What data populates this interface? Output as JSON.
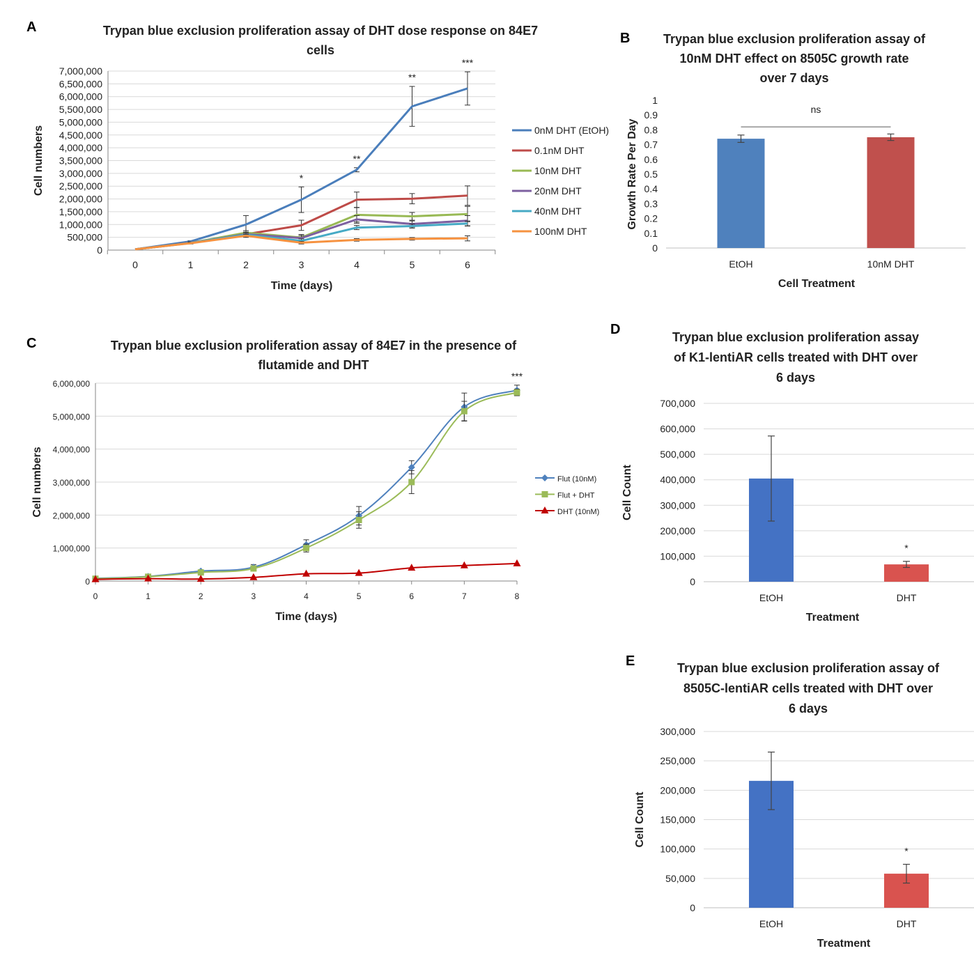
{
  "panel_letters": [
    "A",
    "B",
    "C",
    "D",
    "E"
  ],
  "chart_data": [
    {
      "id": "A",
      "type": "line",
      "title_lines": [
        "Trypan blue exclusion proliferation assay of DHT dose response on 84E7",
        "cells"
      ],
      "xlabel": "Time (days)",
      "ylabel": "Cell numbers",
      "x": [
        0,
        1,
        2,
        3,
        4,
        5,
        6
      ],
      "ylim": [
        0,
        7000000
      ],
      "ytick_step": 500000,
      "yticks": [
        "0",
        "500,000",
        "1,000,000",
        "1,500,000",
        "2,000,000",
        "2,500,000",
        "3,000,000",
        "3,500,000",
        "4,000,000",
        "4,500,000",
        "5,000,000",
        "5,500,000",
        "6,000,000",
        "6,500,000",
        "7,000,000"
      ],
      "grid": true,
      "legend": "right",
      "series": [
        {
          "name": "0nM DHT (EtOH)",
          "color": "#4a7ebb",
          "values": [
            30000,
            340000,
            1000000,
            1970000,
            3140000,
            5620000,
            6320000
          ],
          "errors": [
            0,
            30000,
            350000,
            500000,
            80000,
            780000,
            650000
          ]
        },
        {
          "name": "0.1nM DHT",
          "color": "#be4b48",
          "values": [
            30000,
            290000,
            620000,
            970000,
            1970000,
            2010000,
            2130000
          ],
          "errors": [
            0,
            30000,
            80000,
            200000,
            300000,
            200000,
            380000
          ]
        },
        {
          "name": "10nM DHT",
          "color": "#98b954",
          "values": [
            30000,
            280000,
            680000,
            490000,
            1380000,
            1320000,
            1410000
          ],
          "errors": [
            0,
            30000,
            80000,
            120000,
            280000,
            150000,
            300000
          ]
        },
        {
          "name": "20nM DHT",
          "color": "#7d60a0",
          "values": [
            30000,
            280000,
            620000,
            470000,
            1200000,
            1020000,
            1150000
          ],
          "errors": [
            0,
            30000,
            80000,
            100000,
            150000,
            120000,
            200000
          ]
        },
        {
          "name": "40nM DHT",
          "color": "#46aac5",
          "values": [
            30000,
            280000,
            600000,
            360000,
            880000,
            940000,
            1040000
          ],
          "errors": [
            0,
            30000,
            80000,
            80000,
            80000,
            80000,
            100000
          ]
        },
        {
          "name": "100nM DHT",
          "color": "#f69240",
          "values": [
            30000,
            270000,
            560000,
            290000,
            400000,
            440000,
            460000
          ],
          "errors": [
            0,
            30000,
            60000,
            50000,
            50000,
            50000,
            100000
          ]
        }
      ],
      "annotations": [
        {
          "x": 3,
          "text": "*"
        },
        {
          "x": 4,
          "text": "**"
        },
        {
          "x": 5,
          "text": "**"
        },
        {
          "x": 6,
          "text": "***"
        }
      ]
    },
    {
      "id": "B",
      "type": "bar",
      "title_lines": [
        "Trypan blue exclusion proliferation assay of",
        "10nM DHT effect on 8505C growth rate",
        "over 7 days"
      ],
      "xlabel": "Cell Treatment",
      "ylabel": "Growth Rate Per Day",
      "categories": [
        "EtOH",
        "10nM DHT"
      ],
      "values": [
        0.74,
        0.75
      ],
      "errors": [
        0.025,
        0.022
      ],
      "colors": [
        "#4f81bd",
        "#c0504d"
      ],
      "ylim": [
        0,
        1
      ],
      "ytick_step": 0.1,
      "yticks": [
        "0",
        "0.1",
        "0.2",
        "0.3",
        "0.4",
        "0.5",
        "0.6",
        "0.7",
        "0.8",
        "0.9",
        "1"
      ],
      "grid": false,
      "annotation": "ns"
    },
    {
      "id": "C",
      "type": "line",
      "title_lines": [
        "Trypan blue exclusion proliferation assay of 84E7 in the presence of",
        "flutamide and DHT"
      ],
      "xlabel": "Time (days)",
      "ylabel": "Cell numbers",
      "x": [
        0,
        1,
        2,
        3,
        4,
        5,
        6,
        7,
        8
      ],
      "ylim": [
        0,
        6000000
      ],
      "ytick_step": 1000000,
      "yticks": [
        "0",
        "1,000,000",
        "2,000,000",
        "3,000,000",
        "4,000,000",
        "5,000,000",
        "6,000,000"
      ],
      "grid": true,
      "legend": "right",
      "series": [
        {
          "name": "Flut (10nM)",
          "color": "#4f81bd",
          "marker": "diamond",
          "values": [
            80000,
            140000,
            300000,
            420000,
            1100000,
            1980000,
            3450000,
            5280000,
            5790000
          ],
          "errors": [
            0,
            20000,
            30000,
            80000,
            150000,
            280000,
            200000,
            420000,
            150000
          ]
        },
        {
          "name": "Flut + DHT",
          "color": "#9bbb59",
          "marker": "square",
          "values": [
            70000,
            130000,
            260000,
            380000,
            1000000,
            1850000,
            3000000,
            5150000,
            5720000
          ],
          "errors": [
            0,
            20000,
            30000,
            80000,
            120000,
            250000,
            350000,
            300000,
            100000
          ]
        },
        {
          "name": "DHT (10nM)",
          "color": "#c00000",
          "marker": "triangle",
          "values": [
            50000,
            70000,
            60000,
            110000,
            220000,
            240000,
            400000,
            470000,
            530000
          ],
          "errors": [
            0,
            0,
            0,
            0,
            0,
            0,
            0,
            0,
            0
          ]
        }
      ],
      "annotations": [
        {
          "x": 8,
          "text": "***"
        }
      ]
    },
    {
      "id": "D",
      "type": "bar",
      "title_lines": [
        "Trypan blue exclusion proliferation assay",
        "of K1-lentiAR cells treated with DHT over",
        "6 days"
      ],
      "xlabel": "Treatment",
      "ylabel": "Cell Count",
      "categories": [
        "EtOH",
        "DHT"
      ],
      "values": [
        405000,
        68000
      ],
      "errors": [
        167000,
        12000
      ],
      "colors": [
        "#4472c4",
        "#d9534f"
      ],
      "ylim": [
        0,
        700000
      ],
      "ytick_step": 100000,
      "yticks": [
        "0",
        "100,000",
        "200,000",
        "300,000",
        "400,000",
        "500,000",
        "600,000",
        "700,000"
      ],
      "grid": true,
      "annotations": [
        {
          "category": "DHT",
          "text": "*"
        }
      ]
    },
    {
      "id": "E",
      "type": "bar",
      "title_lines": [
        "Trypan blue exclusion proliferation assay of",
        "8505C-lentiAR cells treated with DHT over",
        "6 days"
      ],
      "xlabel": "Treatment",
      "ylabel": "Cell Count",
      "categories": [
        "EtOH",
        "DHT"
      ],
      "values": [
        216000,
        58000
      ],
      "errors": [
        49000,
        16000
      ],
      "colors": [
        "#4472c4",
        "#d9534f"
      ],
      "ylim": [
        0,
        300000
      ],
      "ytick_step": 50000,
      "yticks": [
        "0",
        "50,000",
        "100,000",
        "150,000",
        "200,000",
        "250,000",
        "300,000"
      ],
      "grid": true,
      "annotations": [
        {
          "category": "DHT",
          "text": "*"
        }
      ]
    }
  ]
}
